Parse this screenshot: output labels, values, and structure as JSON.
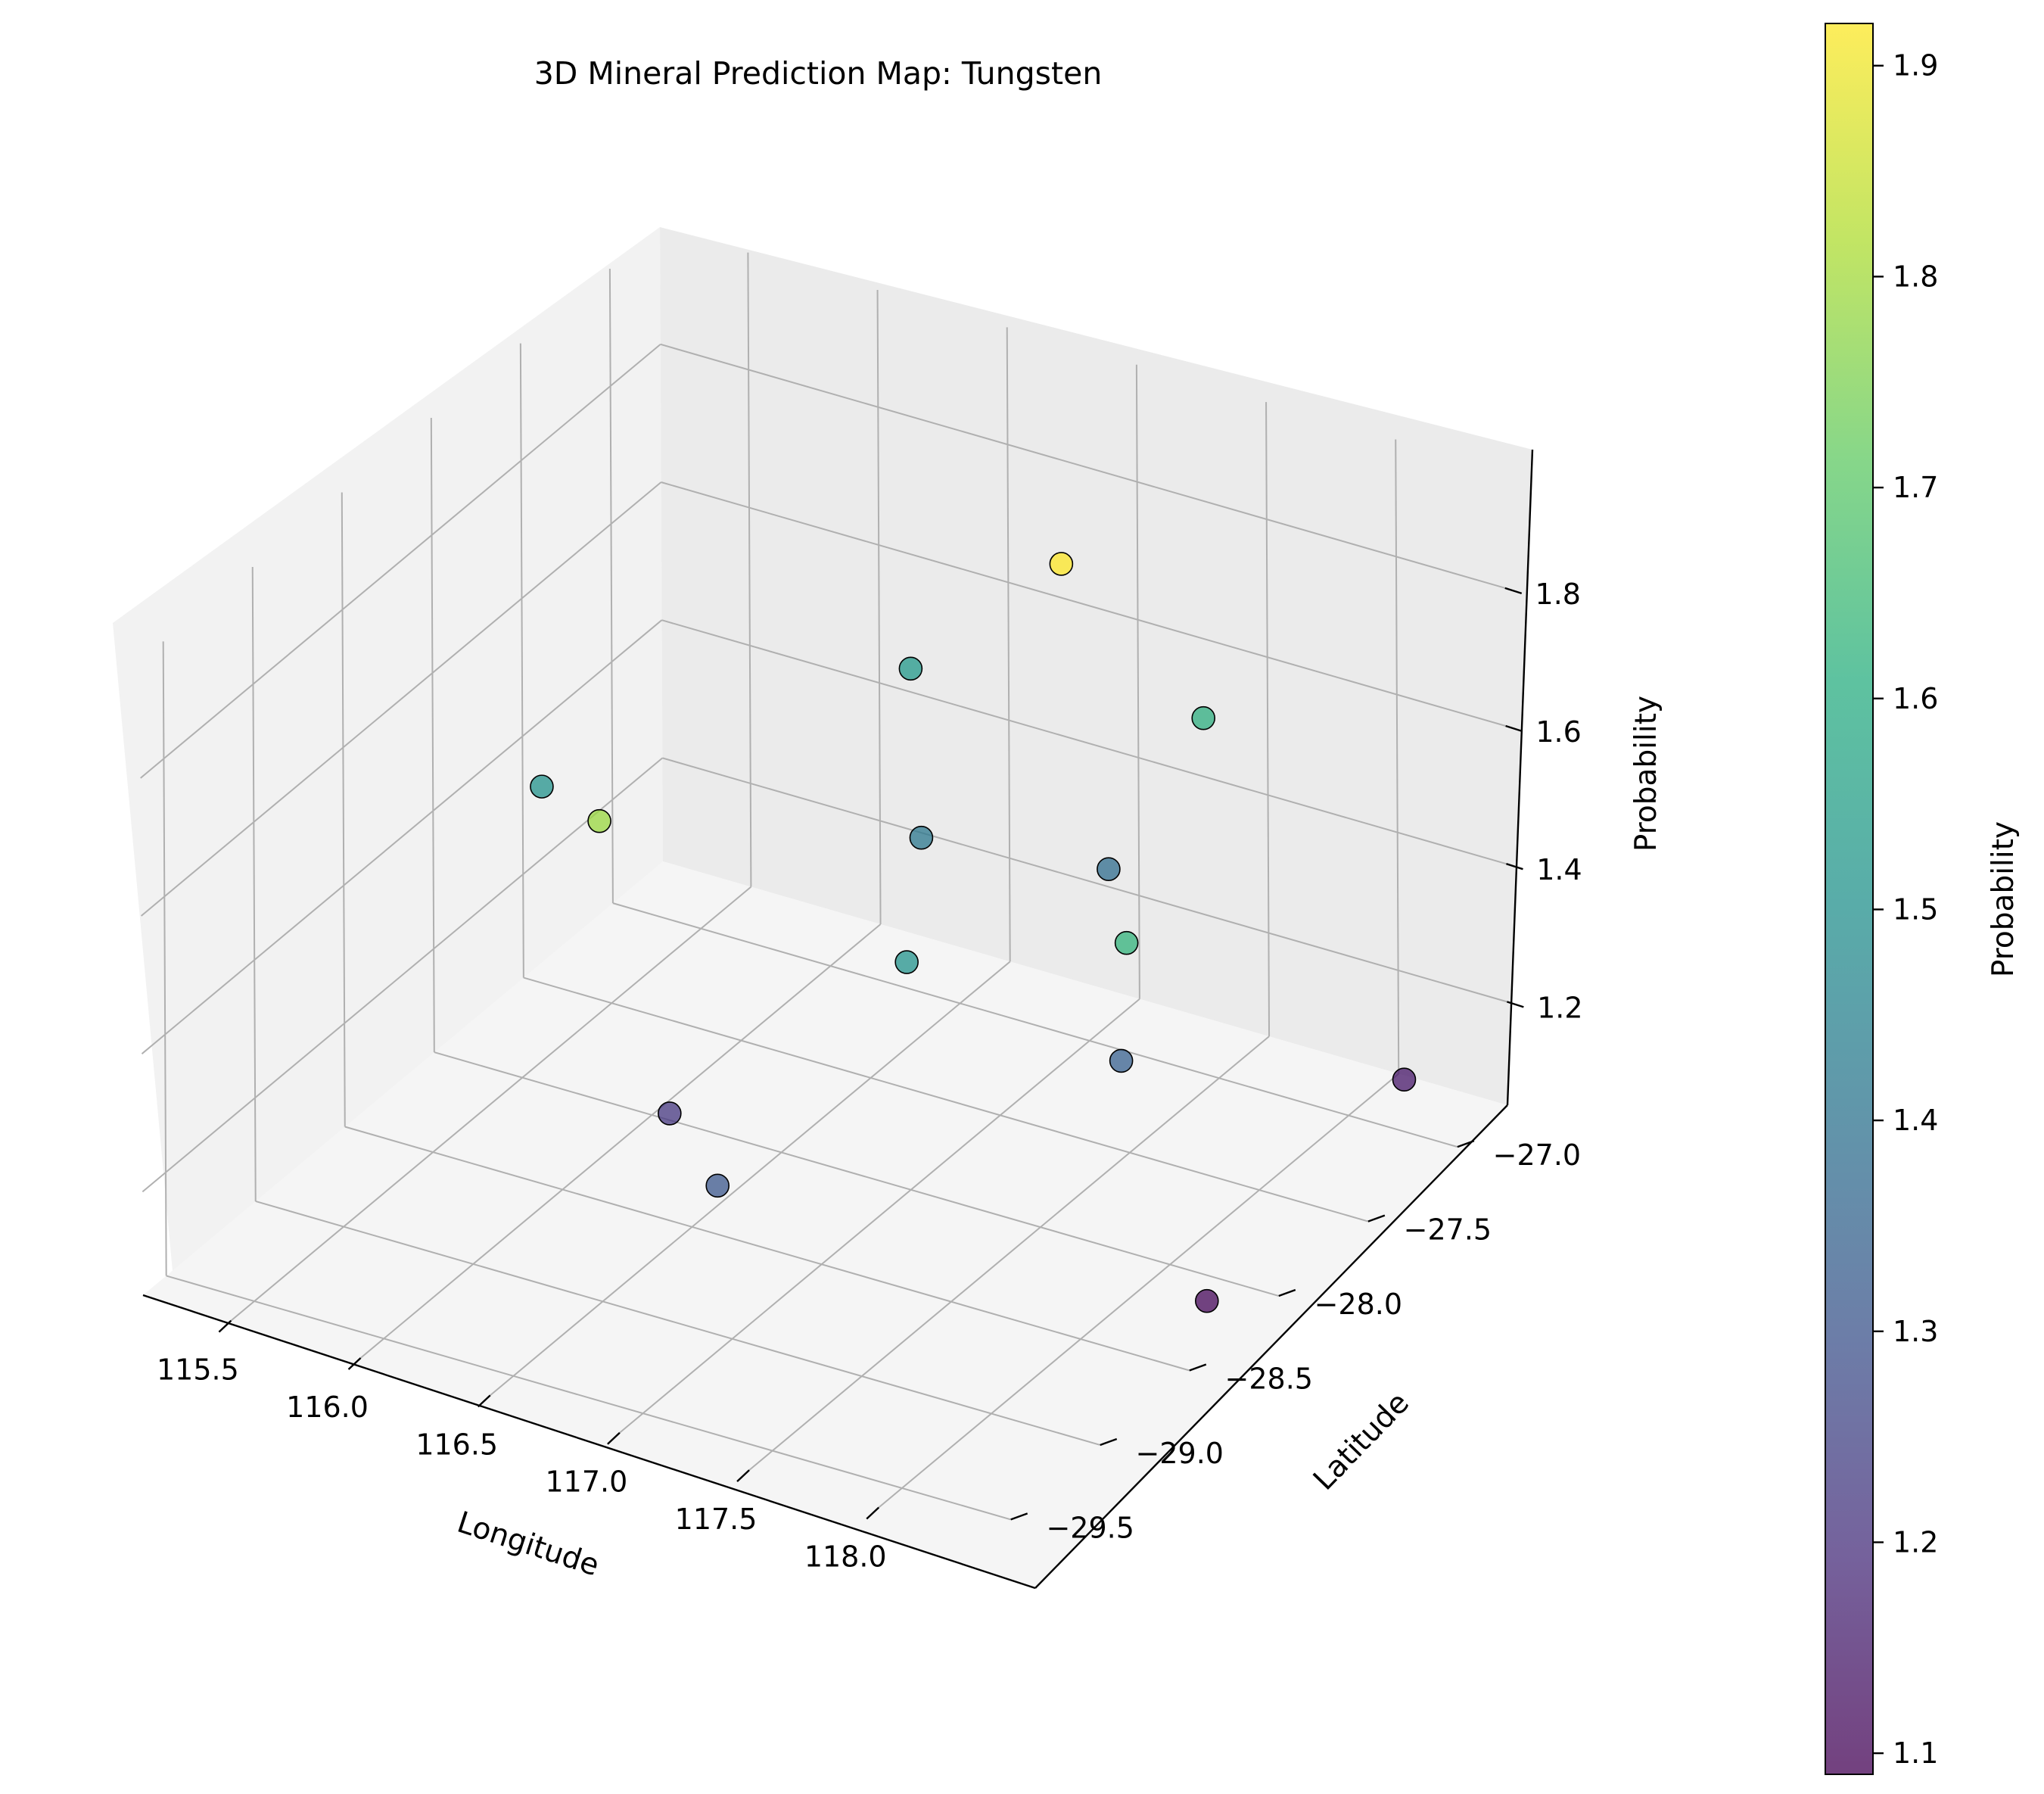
{
  "chart_data": {
    "type": "scatter",
    "projection": "3d",
    "title": "3D Mineral Prediction Map: Tungsten",
    "xlabel": "Longitude",
    "ylabel": "Latitude",
    "zlabel": "Probability",
    "grid": true,
    "colormap": "viridis",
    "colorbar": {
      "label": "Probability",
      "range": [
        1.09,
        1.92
      ],
      "ticks": [
        "1.1",
        "1.2",
        "1.3",
        "1.4",
        "1.5",
        "1.6",
        "1.7",
        "1.8",
        "1.9"
      ]
    },
    "x_ticks": [
      "115.5",
      "116.0",
      "116.5",
      "117.0",
      "117.5",
      "118.0"
    ],
    "y_ticks": [
      "−29.5",
      "−29.0",
      "−28.5",
      "−28.0",
      "−27.5",
      "−27.0"
    ],
    "z_ticks": [
      "1.2",
      "1.4",
      "1.6",
      "1.8"
    ],
    "points": [
      {
        "lon": 116.45,
        "lat": -28.55,
        "prob": 1.22
      },
      {
        "lon": 115.65,
        "lat": -28.1,
        "prob": 1.51
      },
      {
        "lon": 117.35,
        "lat": -27.65,
        "prob": 1.92
      },
      {
        "lon": 117.55,
        "lat": -27.15,
        "prob": 1.61
      },
      {
        "lon": 116.7,
        "lat": -27.5,
        "prob": 1.42
      },
      {
        "lon": 116.6,
        "lat": -29.15,
        "prob": 1.79
      },
      {
        "lon": 116.35,
        "lat": -27.05,
        "prob": 1.53
      },
      {
        "lon": 117.3,
        "lat": -28.45,
        "prob": 1.51
      },
      {
        "lon": 117.25,
        "lat": -27.25,
        "prob": 1.38
      },
      {
        "lon": 117.85,
        "lat": -28.05,
        "prob": 1.34
      },
      {
        "lon": 117.05,
        "lat": -29.15,
        "prob": 1.31
      },
      {
        "lon": 118.15,
        "lat": -28.45,
        "prob": 1.63
      },
      {
        "lon": 118.25,
        "lat": -27.05,
        "prob": 1.14
      },
      {
        "lon": 118.35,
        "lat": -28.3,
        "prob": 1.1
      }
    ]
  }
}
